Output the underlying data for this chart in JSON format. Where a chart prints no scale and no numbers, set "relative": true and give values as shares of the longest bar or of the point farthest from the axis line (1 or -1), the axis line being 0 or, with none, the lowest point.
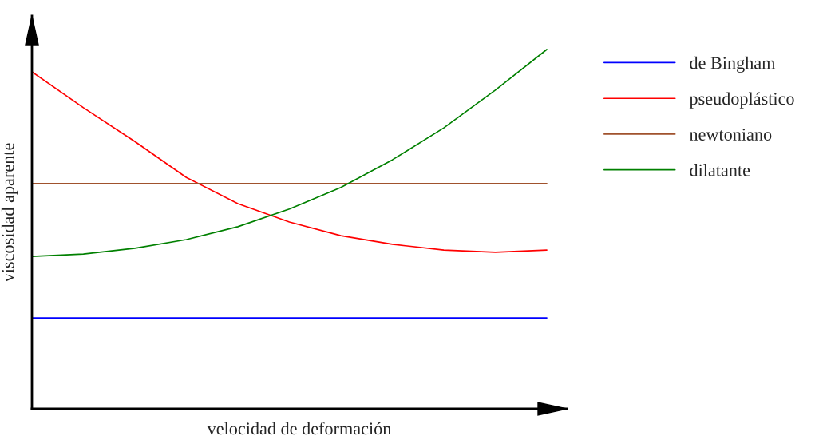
{
  "chart_data": {
    "type": "line",
    "relative": true,
    "xlabel": "velocidad de deformación",
    "ylabel": "viscosidad aparente",
    "legend": "right",
    "marker": "none",
    "line_style": "solid",
    "categories": [
      null,
      null,
      null,
      null,
      null,
      null,
      null,
      null,
      null,
      null,
      null
    ],
    "series": [
      {
        "name": "de Bingham",
        "color": "#0000ff",
        "values": [
          0.253,
          0.253,
          0.253,
          0.253,
          0.253,
          0.253,
          0.253,
          0.253,
          0.253,
          0.253,
          0.253
        ]
      },
      {
        "name": "pseudoplástico",
        "color": "#ff0000",
        "values": [
          0.938,
          0.838,
          0.744,
          0.644,
          0.571,
          0.52,
          0.482,
          0.458,
          0.442,
          0.436,
          0.442
        ]
      },
      {
        "name": "newtoniano",
        "color": "#a0522d",
        "values": [
          0.627,
          0.627,
          0.627,
          0.627,
          0.627,
          0.627,
          0.627,
          0.627,
          0.627,
          0.627,
          0.627
        ]
      },
      {
        "name": "dilatante",
        "color": "#008000",
        "values": [
          0.424,
          0.431,
          0.447,
          0.471,
          0.507,
          0.556,
          0.616,
          0.693,
          0.782,
          0.887,
          1
        ]
      }
    ]
  }
}
